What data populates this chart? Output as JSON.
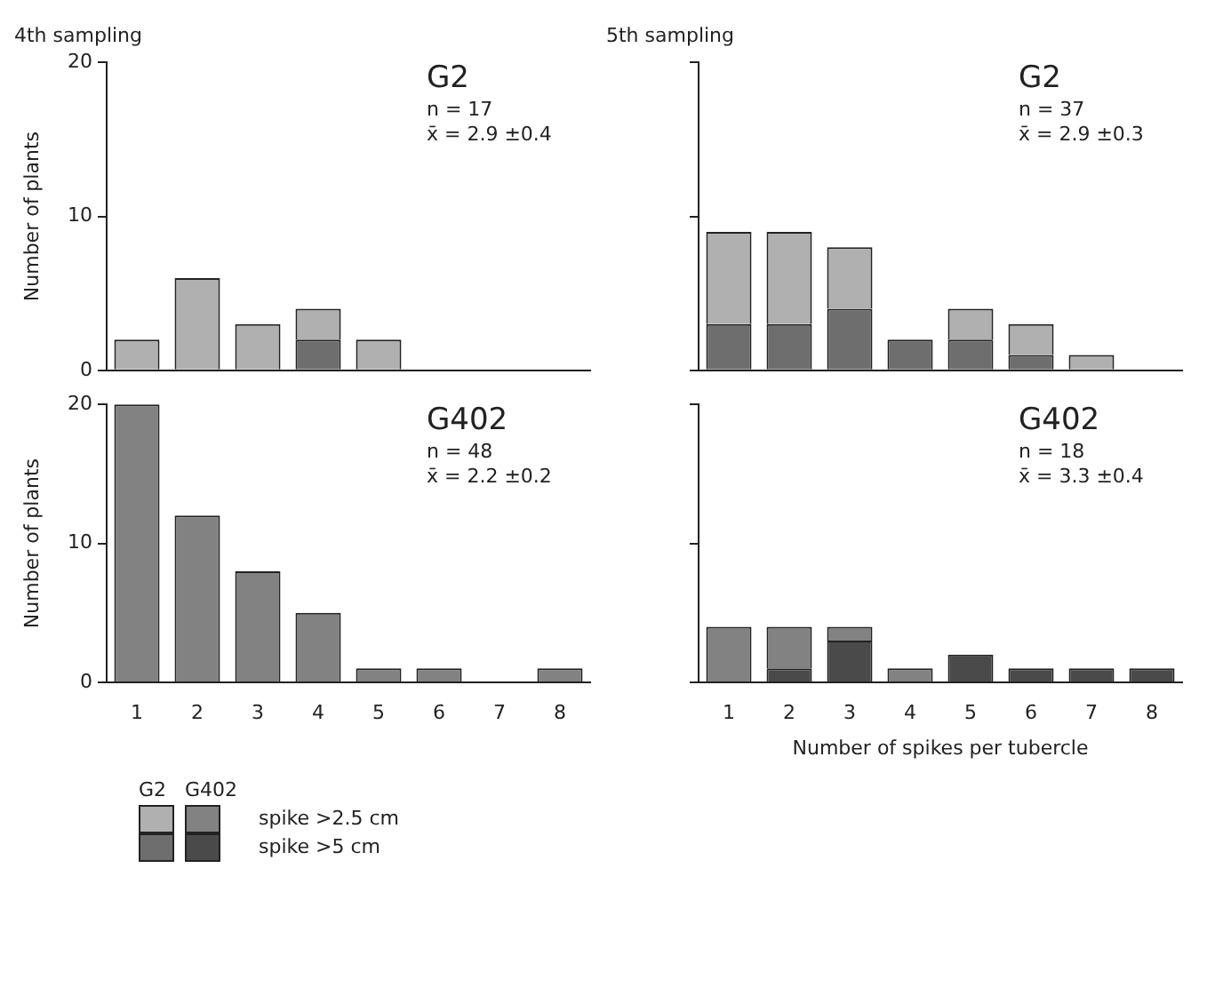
{
  "chart_data": [
    {
      "type": "bar",
      "title": "4th sampling",
      "ylabel": "Number of plants",
      "categories": [
        "1",
        "2",
        "3",
        "4",
        "5",
        "6",
        "7",
        "8"
      ],
      "stacked": true,
      "ylim": [
        0,
        20
      ],
      "yticks": [
        0,
        10,
        20
      ],
      "tick_labels": "y",
      "legend_title": "G2",
      "annotations": [
        "G2",
        "n = 17",
        "x̄ = 2.9 ±0.4"
      ],
      "series": [
        {
          "color": "#6e6e6e",
          "values": [
            0,
            0,
            0,
            2,
            0,
            0,
            0,
            0
          ]
        },
        {
          "color": "#b0b0b0",
          "values": [
            2,
            6,
            3,
            2,
            2,
            0,
            0,
            0
          ]
        }
      ]
    },
    {
      "type": "bar",
      "title": "5th sampling",
      "categories": [
        "1",
        "2",
        "3",
        "4",
        "5",
        "6",
        "7",
        "8"
      ],
      "stacked": true,
      "ylim": [
        0,
        20
      ],
      "yticks": [
        {
          "value": 0,
          "label": null
        },
        {
          "value": 10,
          "label": null
        },
        {
          "value": 20,
          "label": null
        }
      ],
      "tick_labels": false,
      "annotations": [
        "G2",
        "n = 37",
        "x̄ = 2.9 ±0.3"
      ],
      "series": [
        {
          "color": "#6e6e6e",
          "values": [
            3,
            3,
            4,
            2,
            2,
            1,
            0,
            0
          ]
        },
        {
          "color": "#b0b0b0",
          "values": [
            6,
            6,
            4,
            0,
            2,
            2,
            1,
            0
          ]
        }
      ]
    },
    {
      "type": "bar",
      "ylabel": "Number of plants",
      "categories": [
        "1",
        "2",
        "3",
        "4",
        "5",
        "6",
        "7",
        "8"
      ],
      "stacked": true,
      "ylim": [
        0,
        20
      ],
      "yticks": [
        0,
        10,
        20
      ],
      "legend": "bottom",
      "legend_title": "G402",
      "annotations": [
        "G402",
        "n = 48",
        "x̄ = 2.2 ±0.2"
      ],
      "series": [
        {
          "name": "spike >5 cm",
          "color": "#4a4a4a",
          "values": [
            0,
            0,
            0,
            0,
            0,
            0,
            0,
            0
          ]
        },
        {
          "name": "spike >2.5 cm",
          "color": "#828282",
          "values": [
            20,
            12,
            8,
            5,
            1,
            1,
            0,
            1
          ]
        }
      ]
    },
    {
      "type": "bar",
      "xlabel": "Number of spikes per tubercle",
      "categories": [
        "1",
        "2",
        "3",
        "4",
        "5",
        "6",
        "7",
        "8"
      ],
      "stacked": true,
      "ylim": [
        0,
        20
      ],
      "yticks": [
        {
          "value": 0,
          "label": null
        },
        {
          "value": 10,
          "label": null
        },
        {
          "value": 20,
          "label": null
        }
      ],
      "tick_labels": "x",
      "annotations": [
        "G402",
        "n = 18",
        "x̄ = 3.3 ±0.4"
      ],
      "series": [
        {
          "color": "#4a4a4a",
          "values": [
            0,
            1,
            3,
            0,
            2,
            1,
            1,
            1
          ]
        },
        {
          "color": "#828282",
          "values": [
            4,
            3,
            1,
            1,
            0,
            0,
            0,
            0
          ]
        }
      ]
    }
  ]
}
